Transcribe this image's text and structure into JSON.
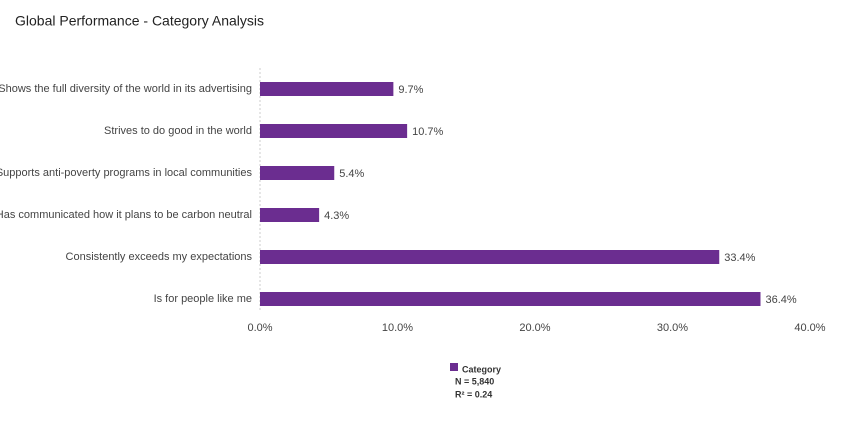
{
  "chart_data": {
    "type": "bar",
    "orientation": "horizontal",
    "title": "Global Performance - Category Analysis",
    "categories": [
      "Shows the full diversity of the world in its advertising",
      "Strives to do good in the world",
      "Supports anti-poverty programs in local communities",
      "Has communicated how it plans to be carbon neutral",
      "Consistently exceeds my expectations",
      "Is for people like me"
    ],
    "series": [
      {
        "name": "Category",
        "color": "#6b2d90",
        "values": [
          9.7,
          10.7,
          5.4,
          4.3,
          33.4,
          36.4
        ],
        "value_labels": [
          "9.7%",
          "10.7%",
          "5.4%",
          "4.3%",
          "33.4%",
          "36.4%"
        ]
      }
    ],
    "xlim": [
      0,
      40
    ],
    "xticks": [
      {
        "value": 0,
        "label": "0.0%"
      },
      {
        "value": 10,
        "label": "10.0%"
      },
      {
        "value": 20,
        "label": "20.0%"
      },
      {
        "value": 30,
        "label": "30.0%"
      },
      {
        "value": 40,
        "label": "40.0%"
      }
    ],
    "legend_notes": [
      "N = 5,840",
      "R² = 0.24"
    ]
  }
}
